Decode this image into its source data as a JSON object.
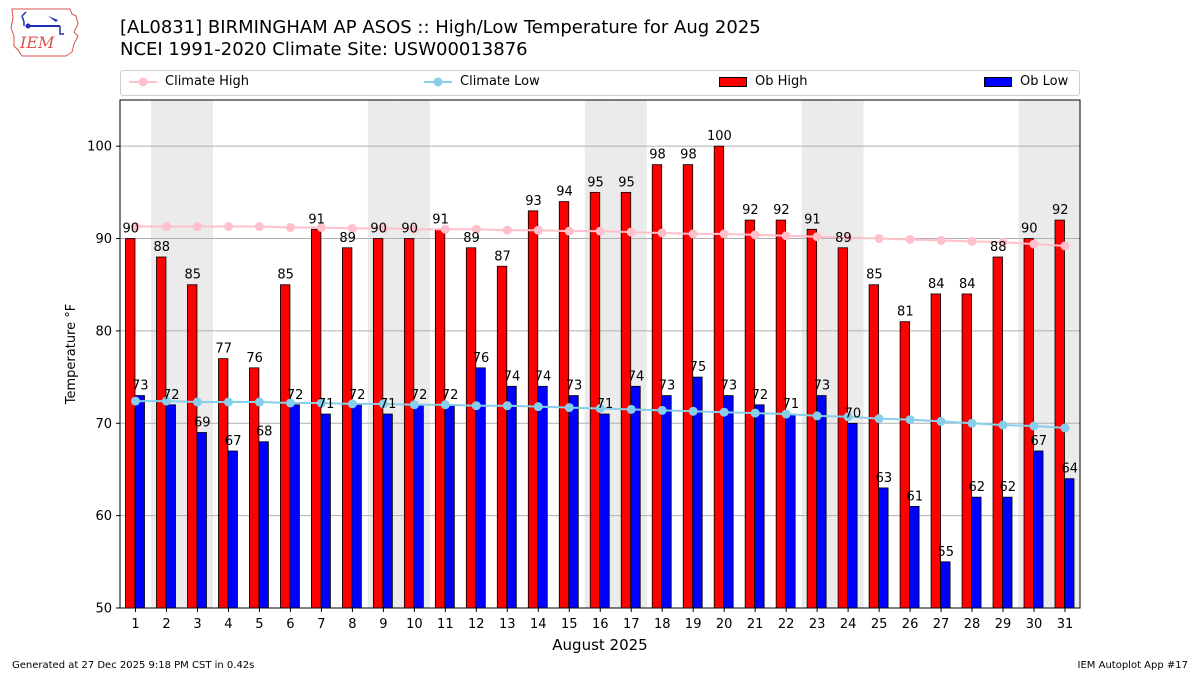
{
  "header": {
    "logo_text": "IEM",
    "title_line1": "[AL0831] BIRMINGHAM AP ASOS :: High/Low Temperature for Aug 2025",
    "title_line2": "NCEI 1991-2020 Climate Site: USW00013876"
  },
  "footer": {
    "left": "Generated at 27 Dec 2025 9:18 PM CST in 0.42s",
    "right": "IEM Autoplot App #17"
  },
  "chart_data": {
    "type": "bar",
    "title": "[AL0831] BIRMINGHAM AP ASOS :: High/Low Temperature for Aug 2025",
    "subtitle": "NCEI 1991-2020 Climate Site: USW00013876",
    "xlabel": "August 2025",
    "ylabel": "Temperature °F",
    "ylim": [
      50,
      105
    ],
    "yticks": [
      50,
      60,
      70,
      80,
      90,
      100
    ],
    "grid": "horizontal",
    "legend_position": "top",
    "categories": [
      1,
      2,
      3,
      4,
      5,
      6,
      7,
      8,
      9,
      10,
      11,
      12,
      13,
      14,
      15,
      16,
      17,
      18,
      19,
      20,
      21,
      22,
      23,
      24,
      25,
      26,
      27,
      28,
      29,
      30,
      31
    ],
    "weekend_shaded_days": [
      2,
      3,
      9,
      10,
      16,
      17,
      23,
      24,
      30,
      31
    ],
    "series": [
      {
        "name": "Climate High",
        "kind": "line",
        "color": "#ffc0cb",
        "values": [
          91.3,
          91.3,
          91.3,
          91.3,
          91.3,
          91.2,
          91.2,
          91.1,
          91.1,
          91.0,
          91.0,
          91.0,
          90.9,
          90.9,
          90.8,
          90.8,
          90.7,
          90.6,
          90.5,
          90.5,
          90.4,
          90.3,
          90.2,
          90.1,
          90.0,
          89.9,
          89.8,
          89.7,
          89.6,
          89.4,
          89.2
        ]
      },
      {
        "name": "Climate Low",
        "kind": "line",
        "color": "#87ceeb",
        "values": [
          72.4,
          72.4,
          72.3,
          72.3,
          72.3,
          72.2,
          72.2,
          72.1,
          72.1,
          72.0,
          72.0,
          71.9,
          71.9,
          71.8,
          71.7,
          71.6,
          71.5,
          71.4,
          71.3,
          71.2,
          71.1,
          71.0,
          70.8,
          70.7,
          70.5,
          70.4,
          70.2,
          70.0,
          69.8,
          69.7,
          69.5
        ]
      },
      {
        "name": "Ob High",
        "kind": "bar",
        "color": "#ff0000",
        "values": [
          90,
          88,
          85,
          77,
          76,
          85,
          91,
          89,
          90,
          90,
          91,
          89,
          87,
          93,
          94,
          95,
          95,
          98,
          98,
          100,
          92,
          92,
          91,
          89,
          85,
          81,
          84,
          84,
          88,
          90,
          92
        ]
      },
      {
        "name": "Ob Low",
        "kind": "bar",
        "color": "#0000ff",
        "values": [
          73,
          72,
          69,
          67,
          68,
          72,
          71,
          72,
          71,
          72,
          72,
          76,
          74,
          74,
          73,
          71,
          74,
          73,
          75,
          73,
          72,
          71,
          73,
          70,
          63,
          61,
          55,
          62,
          62,
          67,
          64
        ]
      }
    ]
  }
}
